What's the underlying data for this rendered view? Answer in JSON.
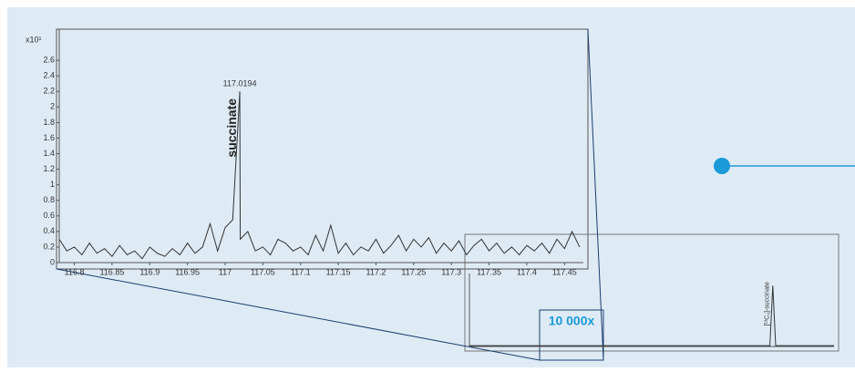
{
  "chart_data": [
    {
      "type": "line",
      "y_label": "x10¹",
      "peak_label": "117.0194",
      "annotation": "succinate",
      "color": "#333333",
      "x": [
        116.78,
        116.79,
        116.8,
        116.81,
        116.82,
        116.83,
        116.84,
        116.85,
        116.86,
        116.87,
        116.88,
        116.89,
        116.9,
        116.91,
        116.92,
        116.93,
        116.94,
        116.95,
        116.96,
        116.97,
        116.98,
        116.99,
        117.0,
        117.01,
        117.0194,
        117.02,
        117.03,
        117.04,
        117.05,
        117.06,
        117.07,
        117.08,
        117.09,
        117.1,
        117.11,
        117.12,
        117.13,
        117.14,
        117.15,
        117.16,
        117.17,
        117.18,
        117.19,
        117.2,
        117.21,
        117.22,
        117.23,
        117.24,
        117.25,
        117.26,
        117.27,
        117.28,
        117.29,
        117.3,
        117.31,
        117.32,
        117.33,
        117.34,
        117.35,
        117.36,
        117.37,
        117.38,
        117.39,
        117.4,
        117.41,
        117.42,
        117.43,
        117.44,
        117.45,
        117.46,
        117.47
      ],
      "values": [
        0.3,
        0.15,
        0.2,
        0.1,
        0.25,
        0.12,
        0.18,
        0.08,
        0.22,
        0.1,
        0.15,
        0.05,
        0.2,
        0.12,
        0.08,
        0.18,
        0.1,
        0.25,
        0.12,
        0.2,
        0.5,
        0.15,
        0.45,
        0.55,
        2.2,
        0.3,
        0.4,
        0.15,
        0.2,
        0.1,
        0.3,
        0.25,
        0.15,
        0.2,
        0.1,
        0.35,
        0.15,
        0.48,
        0.12,
        0.25,
        0.1,
        0.2,
        0.15,
        0.3,
        0.12,
        0.22,
        0.35,
        0.15,
        0.3,
        0.2,
        0.32,
        0.12,
        0.25,
        0.15,
        0.28,
        0.1,
        0.22,
        0.3,
        0.15,
        0.25,
        0.12,
        0.2,
        0.1,
        0.22,
        0.15,
        0.25,
        0.12,
        0.3,
        0.18,
        0.4,
        0.2
      ],
      "xlim": [
        116.78,
        117.475
      ],
      "ylim": [
        0,
        3
      ],
      "xticks": [
        116.8,
        116.85,
        116.9,
        116.95,
        117,
        117.05,
        117.1,
        117.15,
        117.2,
        117.25,
        117.3,
        117.35,
        117.4,
        117.45
      ],
      "yticks": [
        0,
        0.2,
        0.4,
        0.6,
        0.8,
        1,
        1.2,
        1.4,
        1.6,
        1.8,
        2,
        2.2,
        2.4,
        2.6
      ]
    },
    {
      "type": "line",
      "annotation": "[¹³C₄]-succinate",
      "zoom_label": "10 000x",
      "color": "#333333",
      "x": [
        116.85,
        117.2,
        117.5,
        117.88,
        117.89,
        117.9,
        118.1
      ],
      "values": [
        0.02,
        0.02,
        0.02,
        0.02,
        1.5,
        0.02,
        0.02
      ],
      "xlim": [
        116.85,
        118.1
      ],
      "ylim": [
        0,
        1.8
      ]
    }
  ]
}
